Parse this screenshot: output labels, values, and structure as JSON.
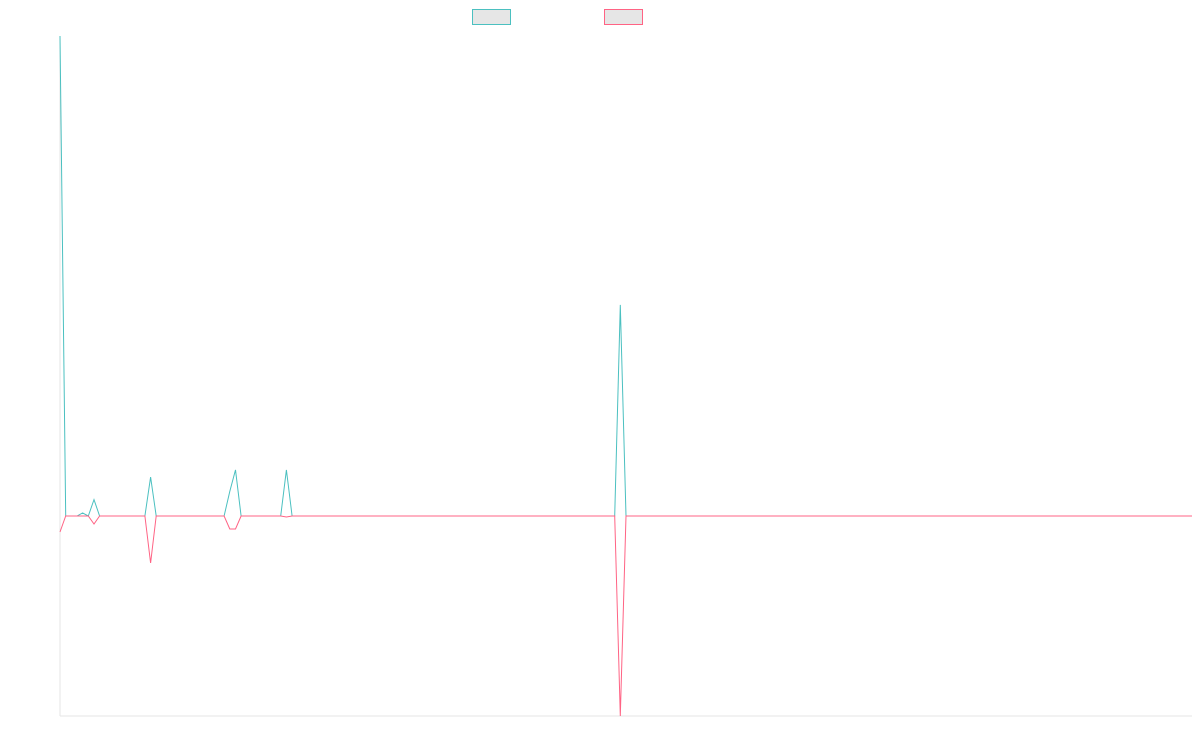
{
  "chart_data": {
    "type": "line",
    "title": "",
    "xlabel": "",
    "ylabel": "",
    "x_count": 100,
    "ylim": [
      -1,
      1
    ],
    "grid": false,
    "legend": "top-center",
    "series": [
      {
        "color": "#4bc0c0",
        "points": [
          [
            0,
            2.4
          ],
          [
            0.5,
            0
          ],
          [
            1.5,
            0
          ],
          [
            2,
            0.015
          ],
          [
            2.5,
            0
          ],
          [
            3,
            0.08
          ],
          [
            3.5,
            0
          ],
          [
            7.5,
            0
          ],
          [
            8,
            0.19
          ],
          [
            8.5,
            0
          ],
          [
            14.5,
            0
          ],
          [
            15,
            0.12
          ],
          [
            15.5,
            0.225
          ],
          [
            16,
            0
          ],
          [
            19.5,
            0
          ],
          [
            20,
            0.225
          ],
          [
            20.5,
            0
          ],
          [
            49,
            0
          ],
          [
            49.5,
            1.03
          ],
          [
            50,
            0
          ],
          [
            100,
            0
          ]
        ]
      },
      {
        "color": "#ff6384",
        "points": [
          [
            0,
            -0.08
          ],
          [
            0.5,
            0
          ],
          [
            1.5,
            0
          ],
          [
            2,
            0
          ],
          [
            2.5,
            0
          ],
          [
            3,
            -0.04
          ],
          [
            3.5,
            0
          ],
          [
            7.5,
            0
          ],
          [
            8,
            -0.235
          ],
          [
            8.5,
            0
          ],
          [
            14.5,
            0
          ],
          [
            15,
            -0.065
          ],
          [
            15.5,
            -0.065
          ],
          [
            16,
            0
          ],
          [
            19.5,
            0
          ],
          [
            20,
            -0.005
          ],
          [
            20.5,
            0
          ],
          [
            49,
            0
          ],
          [
            49.5,
            -1.0
          ],
          [
            50,
            0
          ],
          [
            100,
            0
          ]
        ]
      }
    ]
  }
}
